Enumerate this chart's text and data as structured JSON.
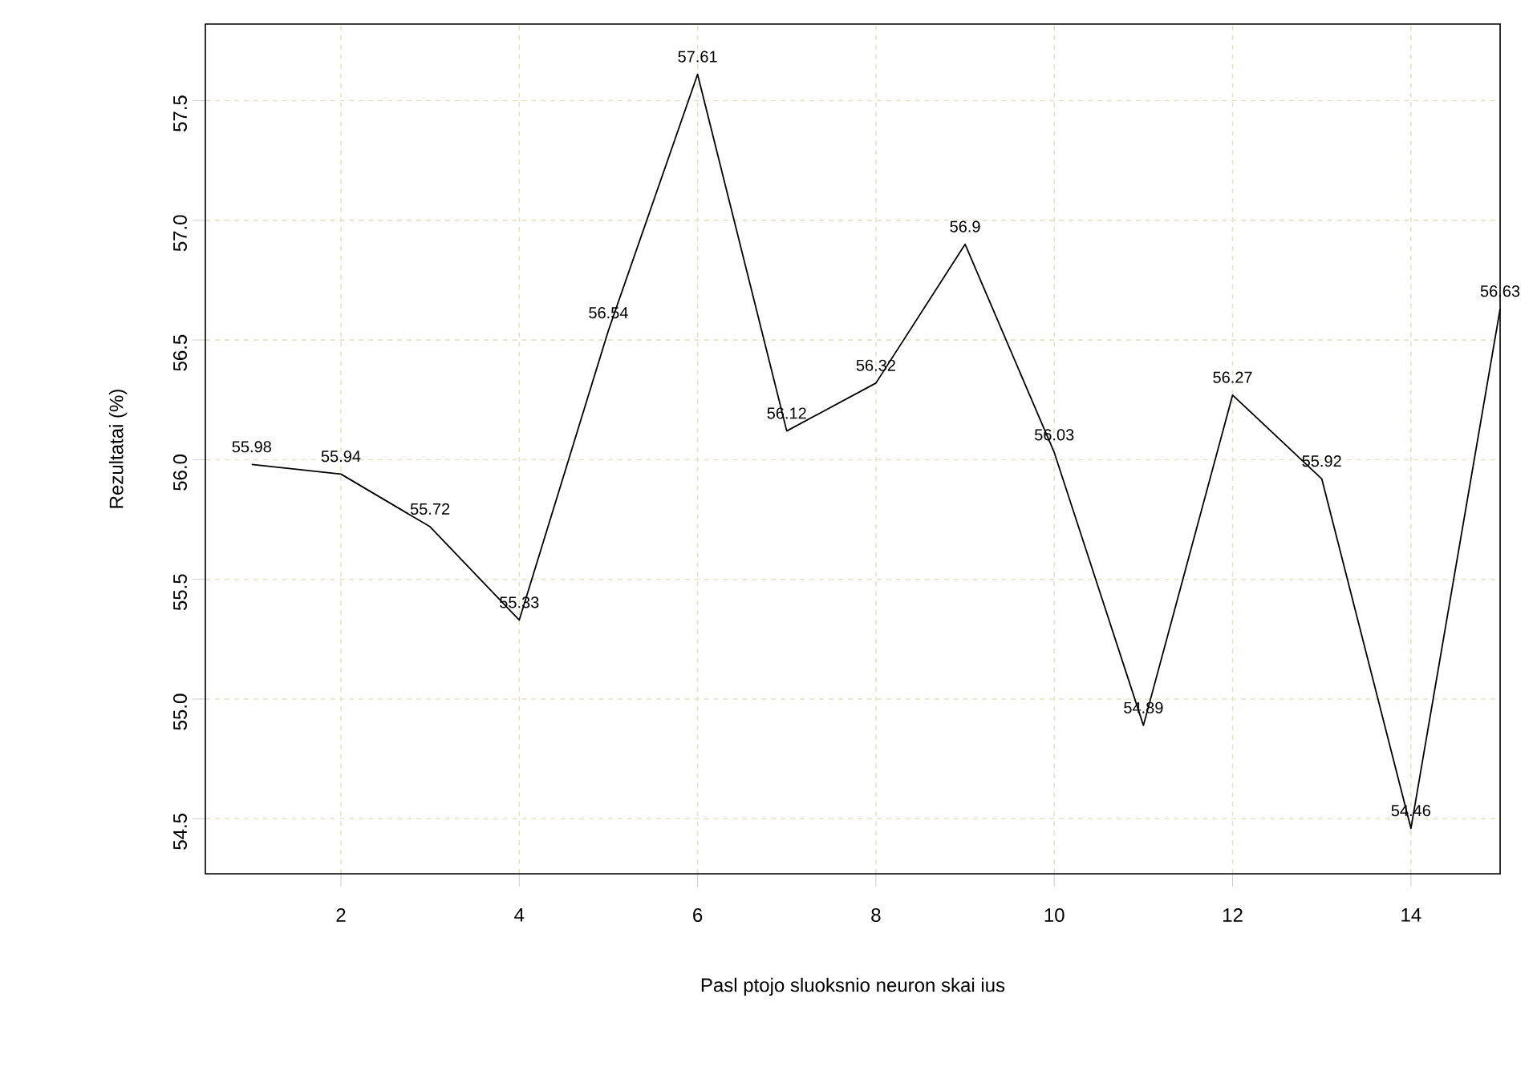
{
  "chart_data": {
    "type": "line",
    "xlabel": "Pasl  ptojo sluoksnio neuron  skai  ius",
    "ylabel": "Rezultatai (%)",
    "x": [
      1,
      2,
      3,
      4,
      5,
      6,
      7,
      8,
      9,
      10,
      11,
      12,
      13,
      14,
      15
    ],
    "values": [
      55.98,
      55.94,
      55.72,
      55.33,
      56.54,
      57.61,
      56.12,
      56.32,
      56.9,
      56.03,
      54.89,
      56.27,
      55.92,
      54.46,
      56.63
    ],
    "value_labels": [
      "55.98",
      "55.94",
      "55.72",
      "55.33",
      "56.54",
      "57.61",
      "56.12",
      "56.32",
      "56.9",
      "56.03",
      "54.89",
      "56.27",
      "55.92",
      "54.46",
      "56.63"
    ],
    "color": "#000000",
    "xlim": [
      0.48,
      15.0
    ],
    "ylim": [
      54.27,
      57.82
    ],
    "xticks": [
      2,
      4,
      6,
      8,
      10,
      12,
      14
    ],
    "yticks": [
      54.5,
      {
        "value": 55,
        "label": "55.0"
      },
      55.5,
      {
        "value": 56,
        "label": "56.0"
      },
      56.5,
      {
        "value": 57,
        "label": "57.0"
      },
      57.5
    ],
    "grid": true,
    "marker": "none",
    "line_style": "solid"
  }
}
